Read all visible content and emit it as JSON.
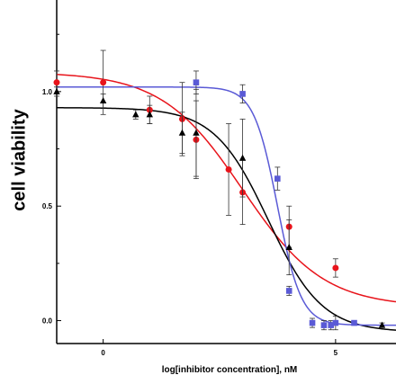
{
  "chart_data": {
    "type": "scatter",
    "xlabel": "log[inhibitor concentration], nM",
    "ylabel": "cell viability",
    "xlim": [
      -1,
      6.3
    ],
    "ylim": [
      -0.1,
      1.4
    ],
    "x_ticks": [
      {
        "value": 0,
        "label": "0"
      },
      {
        "value": 5,
        "label": "5"
      }
    ],
    "y_ticks": [
      {
        "value": 0.0,
        "label": "0.0"
      },
      {
        "value": 0.5,
        "label": "0.5"
      },
      {
        "value": 1.0,
        "label": "1.0"
      }
    ],
    "grid": false,
    "series": [
      {
        "color": "#e8141b",
        "marker": "circle",
        "points": [
          {
            "x": -1.0,
            "y": 1.04,
            "err": 0.05
          },
          {
            "x": 0.0,
            "y": 1.04,
            "err": 0.14
          },
          {
            "x": 1.0,
            "y": 0.92,
            "err": 0.06
          },
          {
            "x": 1.7,
            "y": 0.88,
            "err": 0.16
          },
          {
            "x": 2.0,
            "y": 0.79,
            "err": 0.17
          },
          {
            "x": 2.7,
            "y": 0.66,
            "err": 0.2
          },
          {
            "x": 3.0,
            "y": 0.56,
            "err": 0.14
          },
          {
            "x": 4.0,
            "y": 0.41,
            "err": 0.09
          },
          {
            "x": 5.0,
            "y": 0.23,
            "err": 0.04
          }
        ],
        "fit": {
          "top": 1.085,
          "bottom": 0.06,
          "logEC50": 3.0,
          "hill": 0.5
        }
      },
      {
        "color": "#000000",
        "marker": "triangle",
        "points": [
          {
            "x": -1.0,
            "y": 1.0,
            "err": 0.02
          },
          {
            "x": 0.0,
            "y": 0.96,
            "err": 0.03
          },
          {
            "x": 0.7,
            "y": 0.9,
            "err": 0.02
          },
          {
            "x": 1.0,
            "y": 0.9,
            "err": 0.04
          },
          {
            "x": 1.7,
            "y": 0.82,
            "err": 0.09
          },
          {
            "x": 2.0,
            "y": 0.82,
            "err": 0.19
          },
          {
            "x": 3.0,
            "y": 0.71,
            "err": 0.17
          },
          {
            "x": 4.0,
            "y": 0.32,
            "err": 0.12
          },
          {
            "x": 6.0,
            "y": -0.02,
            "err": 0.01
          }
        ],
        "fit": {
          "top": 0.93,
          "bottom": -0.05,
          "logEC50": 3.55,
          "hill": 0.75
        }
      },
      {
        "color": "#5a5ad6",
        "marker": "square",
        "points": [
          {
            "x": 2.0,
            "y": 1.04,
            "err": 0.05
          },
          {
            "x": 3.0,
            "y": 0.99,
            "err": 0.04
          },
          {
            "x": 3.75,
            "y": 0.62,
            "err": 0.05
          },
          {
            "x": 4.0,
            "y": 0.13,
            "err": 0.02
          },
          {
            "x": 4.5,
            "y": -0.01,
            "err": 0.02
          },
          {
            "x": 4.75,
            "y": -0.02,
            "err": 0.02
          },
          {
            "x": 4.9,
            "y": -0.02,
            "err": 0.02
          },
          {
            "x": 5.0,
            "y": -0.01,
            "err": 0.03
          },
          {
            "x": 5.4,
            "y": -0.01,
            "err": 0.01
          }
        ],
        "fit": {
          "top": 1.02,
          "bottom": -0.02,
          "logEC50": 3.75,
          "hill": 1.7
        }
      }
    ]
  }
}
